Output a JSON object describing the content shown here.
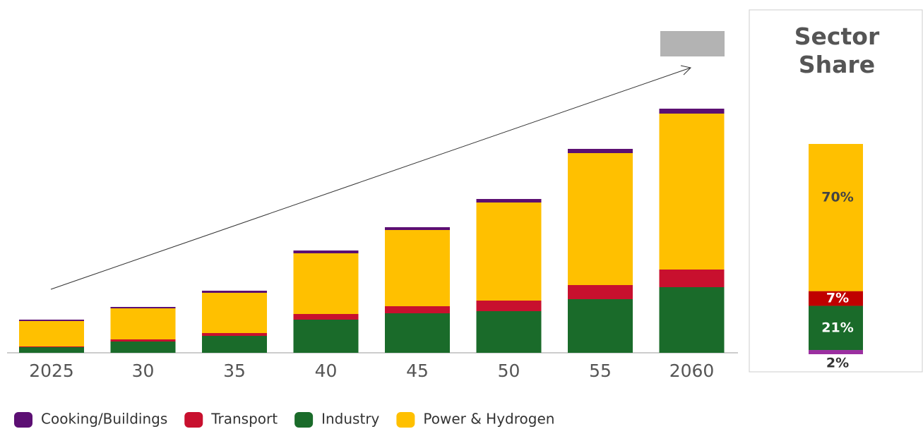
{
  "chart_data": [
    {
      "type": "bar",
      "stacked": true,
      "categories": [
        "2025",
        "30",
        "35",
        "40",
        "45",
        "50",
        "55",
        "2060"
      ],
      "series": [
        {
          "name": "Cooking/Buildings",
          "color": "#5c0f73",
          "values": [
            2,
            2,
            3,
            4,
            4,
            5,
            6,
            7
          ]
        },
        {
          "name": "Transport",
          "color": "#c8102e",
          "values": [
            1,
            3,
            4,
            8,
            10,
            15,
            20,
            25
          ]
        },
        {
          "name": "Industry",
          "color": "#1a6b2a",
          "values": [
            8,
            16,
            24,
            47,
            56,
            59,
            76,
            93
          ]
        },
        {
          "name": "Power & Hydrogen",
          "color": "#ffc000",
          "values": [
            36,
            44,
            57,
            86,
            108,
            139,
            187,
            221
          ]
        }
      ],
      "ylim": [
        0,
        350
      ],
      "legend": "bottom"
    },
    {
      "type": "bar",
      "stacked": true,
      "title": "Sector Share",
      "series": [
        {
          "name": "Cooking/Buildings",
          "color": "#9b2fa0",
          "values": [
            2
          ],
          "value_labels": [
            "2%"
          ]
        },
        {
          "name": "Transport",
          "color": "#c00000",
          "values": [
            7
          ],
          "value_labels": [
            "7%"
          ]
        },
        {
          "name": "Industry",
          "color": "#1a6b2a",
          "values": [
            21
          ],
          "value_labels": [
            "21%"
          ]
        },
        {
          "name": "Power & Hydrogen",
          "color": "#ffc000",
          "values": [
            70
          ],
          "value_labels": [
            "70%"
          ]
        }
      ],
      "ylim": [
        0,
        100
      ]
    }
  ]
}
